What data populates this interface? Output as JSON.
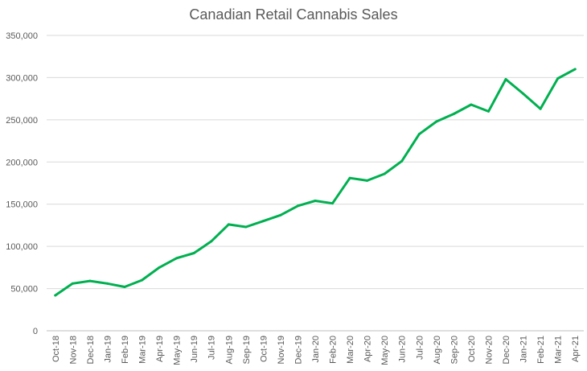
{
  "chart_data": {
    "type": "line",
    "title": "Canadian Retail Cannabis Sales",
    "xlabel": "",
    "ylabel": "",
    "ylim": [
      0,
      350000
    ],
    "yticks": [
      "0",
      "50,000",
      "100,000",
      "150,000",
      "200,000",
      "250,000",
      "300,000",
      "350,000"
    ],
    "ytick_values": [
      0,
      50000,
      100000,
      150000,
      200000,
      250000,
      300000,
      350000
    ],
    "grid": true,
    "legend": "none",
    "categories": [
      "Oct-18",
      "Nov-18",
      "Dec-18",
      "Jan-19",
      "Feb-19",
      "Mar-19",
      "Apr-19",
      "May-19",
      "Jun-19",
      "Jul-19",
      "Aug-19",
      "Sep-19",
      "Oct-19",
      "Nov-19",
      "Dec-19",
      "Jan-20",
      "Feb-20",
      "Mar-20",
      "Apr-20",
      "May-20",
      "Jun-20",
      "Jul-20",
      "Aug-20",
      "Sep-20",
      "Oct-20",
      "Nov-20",
      "Dec-20",
      "Jan-21",
      "Feb-21",
      "Mar-21",
      "Apr-21"
    ],
    "series": [
      {
        "color": "#00b050",
        "values": [
          42000,
          56000,
          59000,
          56000,
          52000,
          60000,
          75000,
          86000,
          92000,
          106000,
          126000,
          123000,
          130000,
          137000,
          148000,
          154000,
          151000,
          181000,
          178000,
          186000,
          201000,
          233000,
          248000,
          257000,
          268000,
          260000,
          298000,
          281000,
          263000,
          299000,
          310000
        ]
      }
    ]
  }
}
